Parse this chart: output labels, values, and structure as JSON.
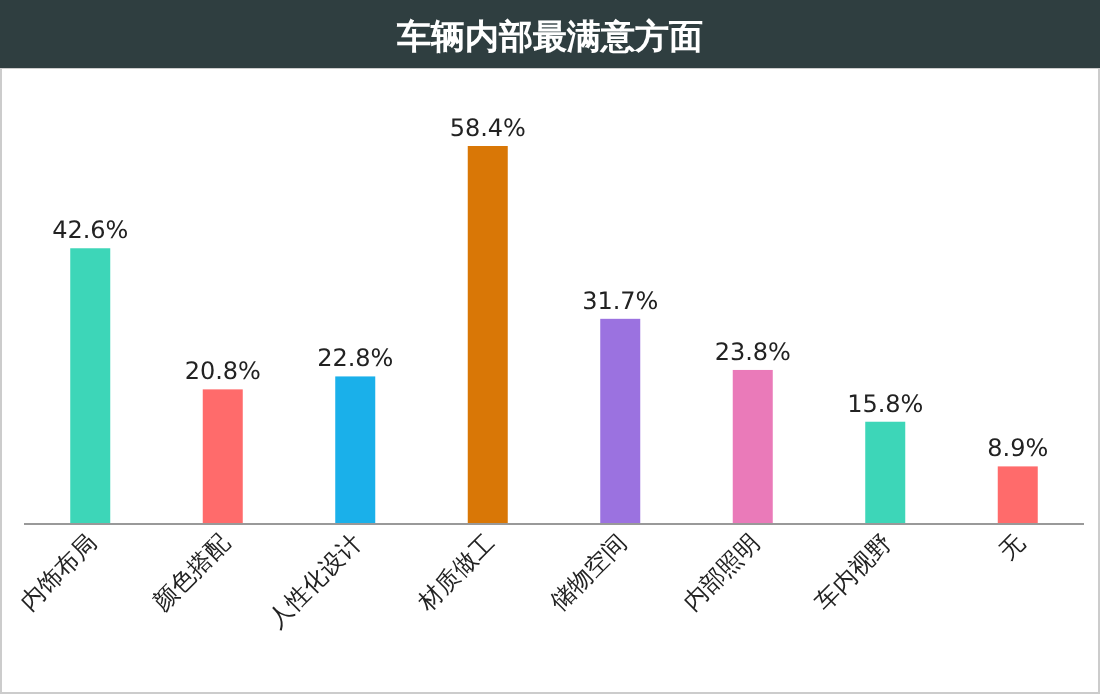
{
  "chart_data": {
    "type": "bar",
    "title": "车辆内部最满意方面",
    "categories": [
      "内饰布局",
      "颜色搭配",
      "人性化设计",
      "材质做工",
      "储物空间",
      "内部照明",
      "车内视野",
      "无"
    ],
    "values": [
      42.6,
      20.8,
      22.8,
      58.4,
      31.7,
      23.8,
      15.8,
      8.9
    ],
    "value_labels": [
      "42.6%",
      "20.8%",
      "22.8%",
      "58.4%",
      "31.7%",
      "23.8%",
      "15.8%",
      "8.9%"
    ],
    "colors": [
      "#3dd6b8",
      "#ff6b6b",
      "#1ab0ea",
      "#d97706",
      "#9b72e0",
      "#ea7ab9",
      "#3dd6b8",
      "#ff6b6b"
    ]
  }
}
